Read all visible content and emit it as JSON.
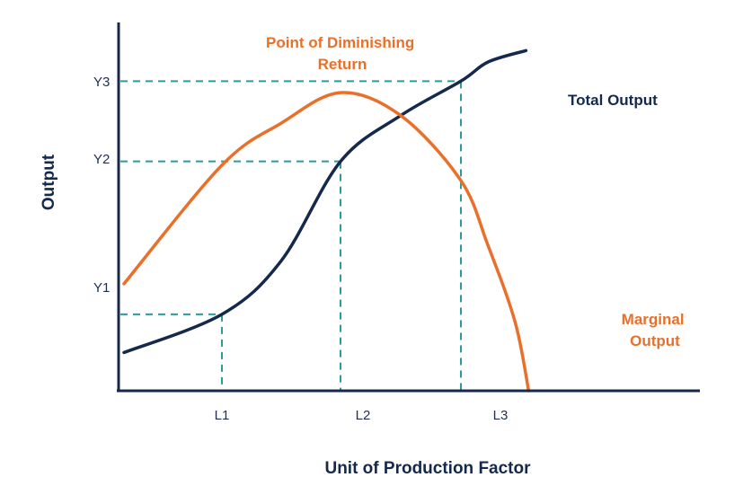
{
  "chart_data": {
    "type": "line",
    "title": "",
    "xlabel": "Unit of Production Factor",
    "ylabel": "Output",
    "x_ticks": [
      "L1",
      "L2",
      "L3"
    ],
    "y_ticks": [
      "Y1",
      "Y2",
      "Y3"
    ],
    "annotation": {
      "lines": [
        "Point of Diminishing",
        "Return"
      ]
    },
    "series": [
      {
        "name": "Total Output",
        "label_lines": [
          "Total Output"
        ],
        "color": "#14294b",
        "points": [
          [
            0.5,
            0.5
          ],
          [
            1,
            1
          ],
          [
            1.5,
            1.7
          ],
          [
            2,
            3
          ],
          [
            2.5,
            3.6
          ],
          [
            3,
            4.05
          ],
          [
            3.5,
            4.3
          ],
          [
            4.2,
            4.45
          ]
        ]
      },
      {
        "name": "Marginal Output",
        "label_lines": [
          "Marginal",
          "Output"
        ],
        "color": "#e8702a",
        "points": [
          [
            0.5,
            1.4
          ],
          [
            1,
            2.95
          ],
          [
            1.5,
            3.5
          ],
          [
            2,
            3.9
          ],
          [
            2.5,
            3.6
          ],
          [
            3,
            2.75
          ],
          [
            3.5,
            1.9
          ],
          [
            4,
            0.9
          ],
          [
            4.25,
            0
          ]
        ]
      }
    ],
    "guides": [
      {
        "x": 1,
        "y": 1
      },
      {
        "x": 2,
        "y": 3
      },
      {
        "x": 3,
        "y": 4.05
      }
    ],
    "xlim": [
      0.5,
      4.5
    ],
    "ylim": [
      0,
      4.7
    ],
    "grid": false,
    "colors": {
      "axis": "#14294b",
      "guide": "#2a9d9a",
      "tick_text": "#1f2f4d",
      "annotation": "#e8702a"
    }
  }
}
